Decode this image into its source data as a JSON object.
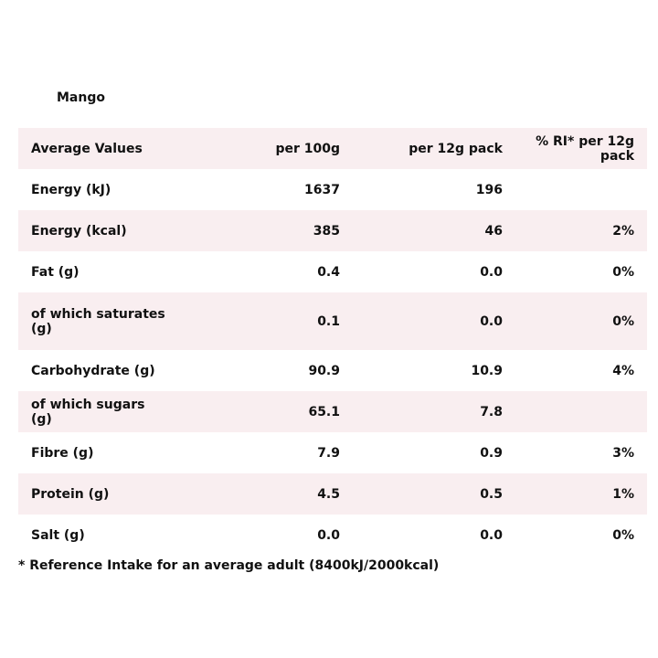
{
  "title": "Mango",
  "table": {
    "header": [
      "Average Values",
      "per 100g",
      "per 12g pack",
      "% RI* per 12g pack"
    ],
    "rows": [
      [
        "Energy (kJ)",
        "1637",
        "196",
        null
      ],
      [
        "Energy (kcal)",
        "385",
        "46",
        "2%"
      ],
      [
        "Fat (g)",
        "0.4",
        "0.0",
        "0%"
      ],
      [
        "of which saturates (g)",
        "0.1",
        "0.0",
        "0%"
      ],
      [
        "Carbohydrate (g)",
        "90.9",
        "10.9",
        "4%"
      ],
      [
        "of which sugars (g)",
        "65.1",
        "7.8",
        null
      ],
      [
        "Fibre (g)",
        "7.9",
        "0.9",
        "3%"
      ],
      [
        "Protein (g)",
        "4.5",
        "0.5",
        "1%"
      ],
      [
        "Salt (g)",
        "0.0",
        "0.0",
        "0%"
      ]
    ]
  },
  "footnote": "* Reference Intake for an average adult (8400kJ/2000kcal)"
}
